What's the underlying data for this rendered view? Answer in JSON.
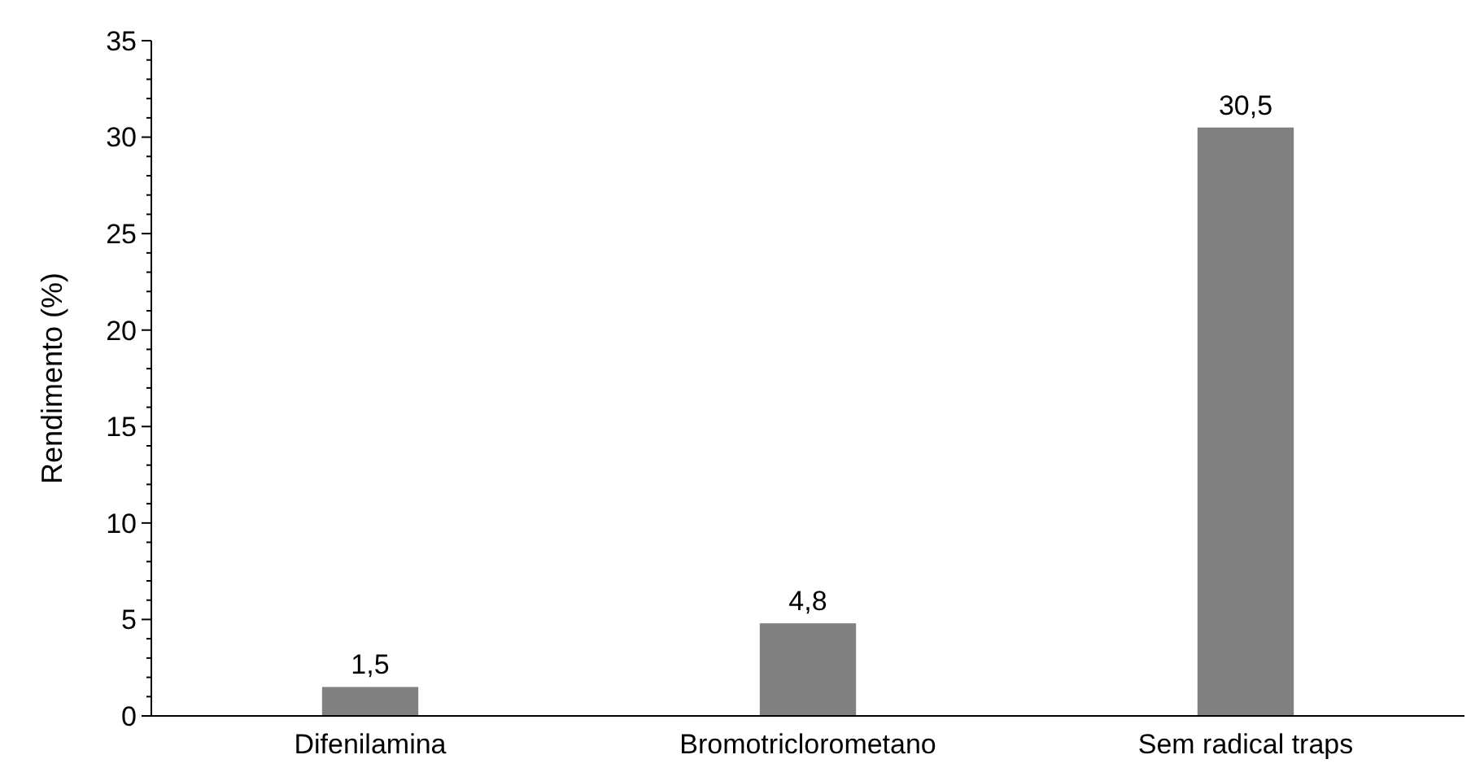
{
  "chart_data": {
    "type": "bar",
    "ylabel": "Rendimento (%)",
    "categories": [
      "Difenilamina",
      "Bromotriclorometano",
      "Sem radical traps"
    ],
    "values": [
      1.5,
      4.8,
      30.5
    ],
    "color": "#808080",
    "value_labels": [
      "1,5",
      "4,8",
      "30,5"
    ],
    "ylim": [
      0,
      35
    ],
    "yticks": [
      0,
      {
        "value": 1,
        "label": null
      },
      {
        "value": 2,
        "label": null
      },
      {
        "value": 3,
        "label": null
      },
      {
        "value": 4,
        "label": null
      },
      5,
      {
        "value": 6,
        "label": null
      },
      {
        "value": 7,
        "label": null
      },
      {
        "value": 8,
        "label": null
      },
      {
        "value": 9,
        "label": null
      },
      10,
      {
        "value": 11,
        "label": null
      },
      {
        "value": 12,
        "label": null
      },
      {
        "value": 13,
        "label": null
      },
      {
        "value": 14,
        "label": null
      },
      15,
      {
        "value": 16,
        "label": null
      },
      {
        "value": 17,
        "label": null
      },
      {
        "value": 18,
        "label": null
      },
      {
        "value": 19,
        "label": null
      },
      20,
      {
        "value": 21,
        "label": null
      },
      {
        "value": 22,
        "label": null
      },
      {
        "value": 23,
        "label": null
      },
      {
        "value": 24,
        "label": null
      },
      25,
      {
        "value": 26,
        "label": null
      },
      {
        "value": 27,
        "label": null
      },
      {
        "value": 28,
        "label": null
      },
      {
        "value": 29,
        "label": null
      },
      30,
      {
        "value": 31,
        "label": null
      },
      {
        "value": 32,
        "label": null
      },
      {
        "value": 33,
        "label": null
      },
      {
        "value": 34,
        "label": null
      },
      35
    ],
    "grid": false
  }
}
